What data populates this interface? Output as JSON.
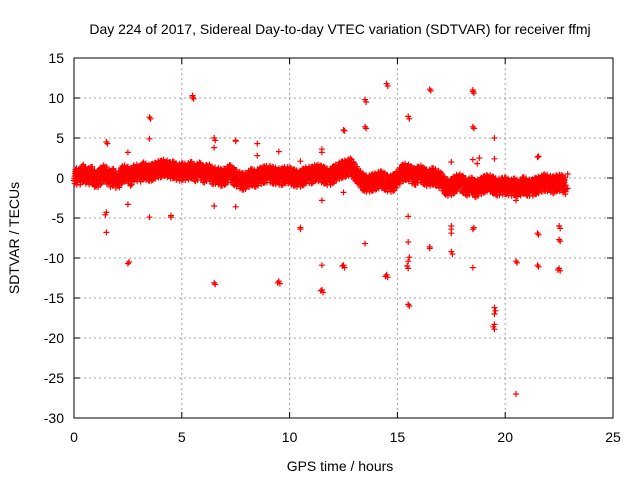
{
  "chart_data": {
    "type": "scatter",
    "title": "Day 224 of 2017, Sidereal Day-to-day VTEC variation (SDTVAR) for receiver ffmj",
    "xlabel": "GPS time / hours",
    "ylabel": "SDTVAR / TECUs",
    "xlim": [
      0,
      25
    ],
    "ylim": [
      -30,
      15
    ],
    "xticks": [
      0,
      5,
      10,
      15,
      20,
      25
    ],
    "yticks": [
      -30,
      -25,
      -20,
      -15,
      -10,
      -5,
      0,
      5,
      10,
      15
    ],
    "grid": true,
    "marker": "+",
    "marker_color": "#ff0000",
    "band": [
      [
        0.0,
        0.5
      ],
      [
        0.2,
        0.2
      ],
      [
        0.4,
        0.8
      ],
      [
        0.6,
        0.3
      ],
      [
        0.8,
        0.6
      ],
      [
        1.0,
        -0.2
      ],
      [
        1.2,
        0.4
      ],
      [
        1.4,
        0.9
      ],
      [
        1.6,
        0.0
      ],
      [
        1.8,
        0.3
      ],
      [
        2.0,
        -0.3
      ],
      [
        2.2,
        0.6
      ],
      [
        2.4,
        0.8
      ],
      [
        2.6,
        0.2
      ],
      [
        2.8,
        1.0
      ],
      [
        3.0,
        0.6
      ],
      [
        3.2,
        1.1
      ],
      [
        3.4,
        0.8
      ],
      [
        3.6,
        0.9
      ],
      [
        3.8,
        1.2
      ],
      [
        4.0,
        1.3
      ],
      [
        4.2,
        1.5
      ],
      [
        4.4,
        1.1
      ],
      [
        4.6,
        1.2
      ],
      [
        4.8,
        0.8
      ],
      [
        5.0,
        1.0
      ],
      [
        5.2,
        0.9
      ],
      [
        5.4,
        1.2
      ],
      [
        5.6,
        0.8
      ],
      [
        5.8,
        1.1
      ],
      [
        6.0,
        0.6
      ],
      [
        6.2,
        1.0
      ],
      [
        6.4,
        0.4
      ],
      [
        6.6,
        0.5
      ],
      [
        6.8,
        0.2
      ],
      [
        7.0,
        0.4
      ],
      [
        7.2,
        0.8
      ],
      [
        7.4,
        0.3
      ],
      [
        7.6,
        0.0
      ],
      [
        7.8,
        -0.3
      ],
      [
        8.0,
        -0.1
      ],
      [
        8.2,
        0.3
      ],
      [
        8.4,
        0.1
      ],
      [
        8.6,
        0.4
      ],
      [
        8.8,
        0.6
      ],
      [
        9.0,
        0.7
      ],
      [
        9.2,
        0.5
      ],
      [
        9.4,
        0.4
      ],
      [
        9.6,
        0.3
      ],
      [
        9.8,
        0.6
      ],
      [
        10.0,
        0.4
      ],
      [
        10.2,
        0.2
      ],
      [
        10.4,
        0.0
      ],
      [
        10.6,
        0.3
      ],
      [
        10.8,
        0.6
      ],
      [
        11.0,
        0.5
      ],
      [
        11.2,
        0.9
      ],
      [
        11.4,
        0.7
      ],
      [
        11.6,
        0.5
      ],
      [
        11.8,
        0.2
      ],
      [
        12.0,
        0.6
      ],
      [
        12.2,
        1.0
      ],
      [
        12.4,
        1.2
      ],
      [
        12.6,
        1.4
      ],
      [
        12.8,
        1.6
      ],
      [
        13.0,
        0.9
      ],
      [
        13.2,
        0.2
      ],
      [
        13.4,
        -0.4
      ],
      [
        13.6,
        -0.6
      ],
      [
        13.8,
        -0.4
      ],
      [
        14.0,
        -0.2
      ],
      [
        14.2,
        0.0
      ],
      [
        14.4,
        -0.3
      ],
      [
        14.6,
        -0.6
      ],
      [
        14.8,
        -0.4
      ],
      [
        15.0,
        0.2
      ],
      [
        15.2,
        0.8
      ],
      [
        15.4,
        1.0
      ],
      [
        15.6,
        0.6
      ],
      [
        15.8,
        0.3
      ],
      [
        16.0,
        0.8
      ],
      [
        16.2,
        0.4
      ],
      [
        16.4,
        0.1
      ],
      [
        16.6,
        0.4
      ],
      [
        16.8,
        0.2
      ],
      [
        17.0,
        -0.2
      ],
      [
        17.2,
        -0.9
      ],
      [
        17.4,
        -1.1
      ],
      [
        17.6,
        -0.7
      ],
      [
        17.8,
        -0.3
      ],
      [
        18.0,
        -0.6
      ],
      [
        18.2,
        -1.0
      ],
      [
        18.4,
        -0.8
      ],
      [
        18.6,
        -1.2
      ],
      [
        18.8,
        -0.9
      ],
      [
        19.0,
        -0.6
      ],
      [
        19.2,
        -0.4
      ],
      [
        19.4,
        -0.7
      ],
      [
        19.6,
        -1.0
      ],
      [
        19.8,
        -0.9
      ],
      [
        20.0,
        -0.8
      ],
      [
        20.2,
        -1.1
      ],
      [
        20.4,
        -0.9
      ],
      [
        20.6,
        -1.2
      ],
      [
        20.8,
        -0.7
      ],
      [
        21.0,
        -1.0
      ],
      [
        21.2,
        -1.1
      ],
      [
        21.4,
        -0.8
      ],
      [
        21.6,
        -0.6
      ],
      [
        21.8,
        -0.4
      ],
      [
        22.0,
        -0.5
      ],
      [
        22.2,
        -0.7
      ],
      [
        22.4,
        -0.4
      ],
      [
        22.6,
        -0.5
      ],
      [
        22.8,
        -0.9
      ]
    ],
    "outliers": [
      [
        1.5,
        4.5
      ],
      [
        1.55,
        4.3
      ],
      [
        1.5,
        -4.3
      ],
      [
        1.45,
        -4.6
      ],
      [
        1.5,
        -6.8
      ],
      [
        2.5,
        3.2
      ],
      [
        2.5,
        -3.3
      ],
      [
        2.55,
        -10.5
      ],
      [
        2.5,
        -10.7
      ],
      [
        3.5,
        7.6
      ],
      [
        3.55,
        7.4
      ],
      [
        3.5,
        4.9
      ],
      [
        3.5,
        -4.9
      ],
      [
        3.45,
        -0.3
      ],
      [
        4.5,
        -4.7
      ],
      [
        4.5,
        -4.9
      ],
      [
        5.5,
        10.3
      ],
      [
        5.55,
        9.9
      ],
      [
        5.5,
        10.1
      ],
      [
        6.5,
        5.0
      ],
      [
        6.55,
        4.7
      ],
      [
        6.5,
        3.8
      ],
      [
        6.5,
        -3.5
      ],
      [
        6.5,
        -13.1
      ],
      [
        6.55,
        -13.3
      ],
      [
        7.5,
        4.7
      ],
      [
        7.5,
        4.6
      ],
      [
        7.5,
        -3.6
      ],
      [
        8.5,
        4.3
      ],
      [
        8.5,
        2.8
      ],
      [
        9.5,
        3.3
      ],
      [
        9.5,
        -12.9
      ],
      [
        9.55,
        -13.2
      ],
      [
        9.45,
        -13.1
      ],
      [
        9.5,
        1.0
      ],
      [
        10.5,
        -6.4
      ],
      [
        10.5,
        -6.2
      ],
      [
        10.5,
        2.1
      ],
      [
        11.5,
        3.6
      ],
      [
        11.5,
        3.2
      ],
      [
        11.5,
        -2.8
      ],
      [
        11.5,
        -10.9
      ],
      [
        11.5,
        -14.0
      ],
      [
        11.55,
        -14.3
      ],
      [
        11.45,
        -14.1
      ],
      [
        12.5,
        6.0
      ],
      [
        12.55,
        5.9
      ],
      [
        12.5,
        -1.8
      ],
      [
        12.5,
        -10.9
      ],
      [
        12.55,
        -11.2
      ],
      [
        12.45,
        -11.0
      ],
      [
        13.5,
        9.8
      ],
      [
        13.55,
        9.5
      ],
      [
        13.5,
        6.4
      ],
      [
        13.55,
        6.2
      ],
      [
        13.5,
        -1.2
      ],
      [
        13.5,
        -8.2
      ],
      [
        14.5,
        11.8
      ],
      [
        14.55,
        11.5
      ],
      [
        14.5,
        -12.1
      ],
      [
        14.55,
        -12.4
      ],
      [
        14.45,
        -12.3
      ],
      [
        15.5,
        7.7
      ],
      [
        15.55,
        7.4
      ],
      [
        15.5,
        -4.8
      ],
      [
        15.5,
        -8.0
      ],
      [
        15.55,
        -9.9
      ],
      [
        15.5,
        -10.4
      ],
      [
        15.5,
        -11.3
      ],
      [
        15.45,
        -11.0
      ],
      [
        15.5,
        -15.8
      ],
      [
        15.55,
        -16.0
      ],
      [
        16.5,
        11.1
      ],
      [
        16.55,
        10.9
      ],
      [
        16.5,
        -8.6
      ],
      [
        16.5,
        -8.8
      ],
      [
        17.5,
        -6.0
      ],
      [
        17.5,
        -6.4
      ],
      [
        17.5,
        -6.9
      ],
      [
        17.5,
        -9.2
      ],
      [
        17.55,
        -9.5
      ],
      [
        17.5,
        2.0
      ],
      [
        18.5,
        11.0
      ],
      [
        18.55,
        10.6
      ],
      [
        18.5,
        10.8
      ],
      [
        18.5,
        6.4
      ],
      [
        18.55,
        6.2
      ],
      [
        18.5,
        2.3
      ],
      [
        18.5,
        -6.4
      ],
      [
        18.55,
        -6.2
      ],
      [
        18.5,
        -11.2
      ],
      [
        18.8,
        2.5
      ],
      [
        18.7,
        1.8
      ],
      [
        19.5,
        5.0
      ],
      [
        19.5,
        2.4
      ],
      [
        19.5,
        -16.2
      ],
      [
        19.55,
        -16.6
      ],
      [
        19.5,
        -18.3
      ],
      [
        19.45,
        -18.6
      ],
      [
        19.5,
        -18.9
      ],
      [
        19.5,
        -17.0
      ],
      [
        20.5,
        -2.8
      ],
      [
        20.5,
        -10.4
      ],
      [
        20.55,
        -10.6
      ],
      [
        20.5,
        -27.0
      ],
      [
        21.5,
        2.6
      ],
      [
        21.55,
        2.7
      ],
      [
        21.5,
        -6.9
      ],
      [
        21.55,
        -7.1
      ],
      [
        21.5,
        -10.9
      ],
      [
        21.55,
        -11.1
      ],
      [
        22.5,
        -6.0
      ],
      [
        22.55,
        -6.3
      ],
      [
        22.5,
        -7.7
      ],
      [
        22.55,
        -7.9
      ],
      [
        22.5,
        -11.3
      ],
      [
        22.55,
        -11.6
      ],
      [
        22.45,
        -11.5
      ],
      [
        22.9,
        0.5
      ],
      [
        22.9,
        -1.3
      ]
    ]
  }
}
